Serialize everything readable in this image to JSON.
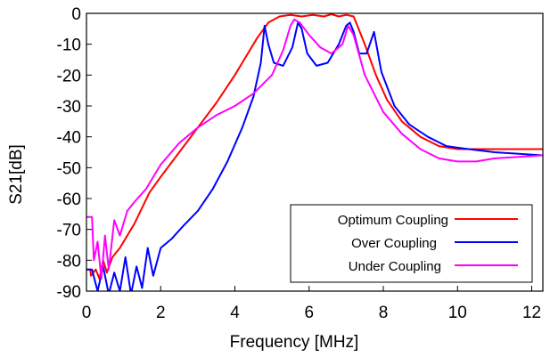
{
  "chart_data": {
    "type": "line",
    "title": "",
    "xlabel": "Frequency [MHz]",
    "ylabel": "S21[dB]",
    "xlim": [
      0,
      12.3
    ],
    "ylim": [
      -90,
      0
    ],
    "x_ticks": [
      0,
      2,
      4,
      6,
      8,
      10,
      12
    ],
    "y_ticks": [
      0,
      -10,
      -20,
      -30,
      -40,
      -50,
      -60,
      -70,
      -80,
      -90
    ],
    "x_tick_labels": [
      "0",
      "2",
      "4",
      "6",
      "8",
      "10",
      "12"
    ],
    "y_tick_labels": [
      "0",
      "-10",
      "-20",
      "-30",
      "-40",
      "-50",
      "-60",
      "-70",
      "-80",
      "-90"
    ],
    "grid": false,
    "legend_position": "bottom-right",
    "series": [
      {
        "name": "Optimum Coupling",
        "color": "#ff0000",
        "x": [
          -0.1,
          0.1,
          0.12,
          0.25,
          0.35,
          0.45,
          0.55,
          0.7,
          0.9,
          1.1,
          1.3,
          1.5,
          1.7,
          2.0,
          2.5,
          3.0,
          3.5,
          4.0,
          4.3,
          4.6,
          4.9,
          5.2,
          5.5,
          5.8,
          6.1,
          6.4,
          6.6,
          6.8,
          7.0,
          7.2,
          7.3,
          7.5,
          7.8,
          8.1,
          8.5,
          9.0,
          9.5,
          10.0,
          11.0,
          12.3
        ],
        "y": [
          -83,
          -83,
          -85,
          -83,
          -86,
          -80,
          -84,
          -79,
          -76,
          -72,
          -68,
          -63,
          -58,
          -53,
          -45,
          -37,
          -29,
          -20,
          -14,
          -8,
          -3,
          -1,
          -0.5,
          -1,
          -0.5,
          -1,
          -0.3,
          -1,
          -0.5,
          -1,
          -4,
          -10,
          -20,
          -28,
          -35,
          -40,
          -43,
          -44,
          -44,
          -44
        ]
      },
      {
        "name": "Over Coupling",
        "color": "#0000ff",
        "x": [
          -0.1,
          0.15,
          0.3,
          0.45,
          0.6,
          0.75,
          0.9,
          1.05,
          1.2,
          1.35,
          1.5,
          1.65,
          1.8,
          2.0,
          2.3,
          2.6,
          3.0,
          3.4,
          3.8,
          4.2,
          4.5,
          4.7,
          4.8,
          4.9,
          5.05,
          5.3,
          5.55,
          5.7,
          5.8,
          5.95,
          6.2,
          6.5,
          6.8,
          7.0,
          7.1,
          7.2,
          7.35,
          7.55,
          7.75,
          7.95,
          8.3,
          8.7,
          9.2,
          9.7,
          10.3,
          11.0,
          12.3
        ],
        "y": [
          -83,
          -83,
          -90,
          -82,
          -91,
          -84,
          -90,
          -79,
          -91,
          -82,
          -89,
          -76,
          -85,
          -76,
          -73,
          -69,
          -64,
          -57,
          -48,
          -37,
          -27,
          -16,
          -4,
          -10,
          -16,
          -17,
          -11,
          -3,
          -5,
          -13,
          -17,
          -16,
          -10,
          -4,
          -3,
          -6,
          -13,
          -13,
          -6,
          -19,
          -30,
          -36,
          -40,
          -43,
          -44,
          -45,
          -46
        ]
      },
      {
        "name": "Under Coupling",
        "color": "#ff00ff",
        "x": [
          -0.1,
          0.15,
          0.2,
          0.3,
          0.4,
          0.5,
          0.6,
          0.75,
          0.9,
          1.1,
          1.3,
          1.6,
          2.0,
          2.5,
          3.0,
          3.5,
          4.0,
          4.5,
          5.0,
          5.3,
          5.5,
          5.6,
          5.75,
          6.0,
          6.3,
          6.6,
          6.9,
          7.05,
          7.2,
          7.5,
          8.0,
          8.5,
          9.0,
          9.5,
          10.0,
          10.5,
          11.0,
          12.3
        ],
        "y": [
          -66,
          -66,
          -80,
          -74,
          -86,
          -72,
          -83,
          -67,
          -72,
          -64,
          -61,
          -57,
          -49,
          -42,
          -37,
          -33,
          -30,
          -26,
          -20,
          -12,
          -4,
          -2,
          -3,
          -7,
          -11,
          -13,
          -10,
          -4,
          -7,
          -20,
          -32,
          -39,
          -44,
          -47,
          -48,
          -48,
          -47,
          -46
        ]
      }
    ]
  }
}
